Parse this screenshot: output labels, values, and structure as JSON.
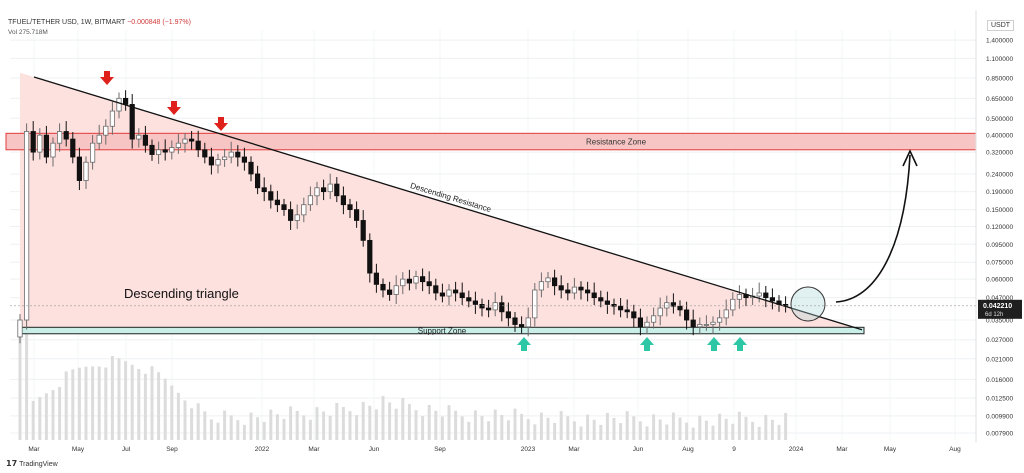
{
  "header": {
    "symbol_line": "TFUEL/TETHER USD, 1W, BITMART",
    "change": "−0.000848 (−1.97%)",
    "volume_label": "Vol",
    "volume_value": "275.718M"
  },
  "price_axis_unit": "USDT",
  "brand": "TradingView",
  "colors": {
    "up": "#6b6b6b",
    "down": "#111111",
    "triangle_fill": "#fde1df",
    "resistance_fill": "#f7c6c4",
    "resistance_border": "#e23b3b",
    "support_fill": "#c9efe8",
    "support_border": "#222222",
    "red_arrow": "#e0201b",
    "teal_arrow": "#2ec7a6"
  },
  "icons": [
    "red-down-arrow-icon",
    "teal-up-arrow-icon",
    "tradingview-logo-icon"
  ],
  "chart_data": {
    "type": "candlestick",
    "y_scale": "log",
    "ylim": [
      0.0072,
      1.6
    ],
    "price_ticks": [
      "1.400000",
      "1.100000",
      "0.850000",
      "0.650000",
      "0.500000",
      "0.400000",
      "0.320000",
      "0.240000",
      "0.190000",
      "0.150000",
      "0.120000",
      "0.095000",
      "0.075000",
      "0.060000",
      "0.047000",
      "0.035000",
      "0.027000",
      "0.021000",
      "0.016000",
      "0.012500",
      "0.009900",
      "0.007900"
    ],
    "time_ticks": [
      "Mar",
      "May",
      "Jul",
      "Sep",
      "2022",
      "Mar",
      "Jun",
      "Sep",
      "2023",
      "Mar",
      "Jun",
      "Aug",
      "9",
      "2024",
      "Mar",
      "May",
      "Aug"
    ],
    "last_price": "0.042210",
    "countdown": "6d 12h",
    "annotations": {
      "resistance_zone": "Resistance Zone",
      "support_zone": "Support Zone",
      "descending_resistance": "Descending Resistance",
      "pattern": "Descending triangle"
    },
    "closes": [
      0.035,
      0.42,
      0.32,
      0.4,
      0.3,
      0.36,
      0.42,
      0.38,
      0.3,
      0.22,
      0.28,
      0.36,
      0.4,
      0.45,
      0.55,
      0.65,
      0.6,
      0.38,
      0.4,
      0.35,
      0.31,
      0.33,
      0.32,
      0.34,
      0.36,
      0.38,
      0.37,
      0.33,
      0.3,
      0.27,
      0.29,
      0.3,
      0.32,
      0.3,
      0.28,
      0.24,
      0.2,
      0.19,
      0.17,
      0.16,
      0.15,
      0.13,
      0.14,
      0.16,
      0.18,
      0.2,
      0.19,
      0.21,
      0.18,
      0.16,
      0.15,
      0.13,
      0.1,
      0.065,
      0.056,
      0.052,
      0.049,
      0.055,
      0.06,
      0.057,
      0.062,
      0.058,
      0.055,
      0.05,
      0.048,
      0.052,
      0.05,
      0.047,
      0.045,
      0.043,
      0.041,
      0.04,
      0.044,
      0.039,
      0.036,
      0.033,
      0.032,
      0.036,
      0.052,
      0.058,
      0.061,
      0.055,
      0.052,
      0.05,
      0.054,
      0.052,
      0.05,
      0.047,
      0.045,
      0.043,
      0.042,
      0.04,
      0.039,
      0.036,
      0.032,
      0.034,
      0.037,
      0.041,
      0.044,
      0.042,
      0.04,
      0.035,
      0.032,
      0.033,
      0.033,
      0.034,
      0.036,
      0.04,
      0.046,
      0.049,
      0.047,
      0.048,
      0.05,
      0.047,
      0.045,
      0.043,
      0.042
    ]
  }
}
